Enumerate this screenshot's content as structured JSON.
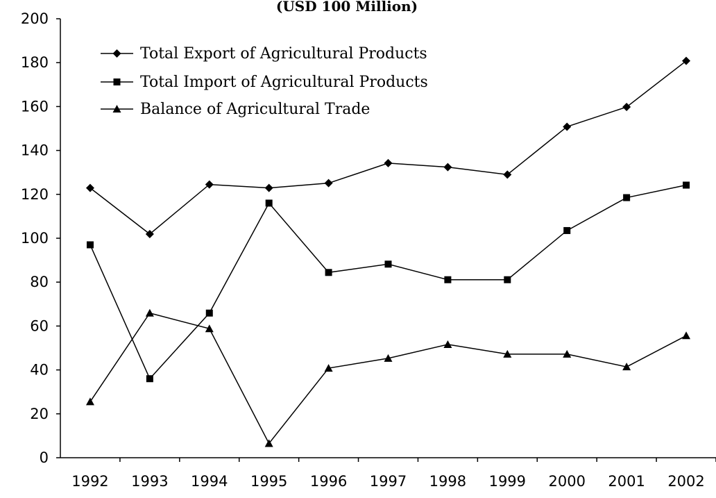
{
  "chart_data": {
    "type": "line",
    "title": "(USD 100 Million)",
    "categories": [
      "1992",
      "1993",
      "1994",
      "1995",
      "1996",
      "1997",
      "1998",
      "1999",
      "2000",
      "2001",
      "2002"
    ],
    "ylim": [
      0,
      200
    ],
    "yticks": [
      0,
      20,
      40,
      60,
      80,
      100,
      120,
      140,
      160,
      180,
      200
    ],
    "xlabel": "",
    "ylabel": "",
    "grid": false,
    "legend_position": "top-left",
    "series": [
      {
        "name": "Total Export of Agricultural Products",
        "marker": "diamond",
        "values": [
          122.9,
          101.9,
          124.5,
          122.9,
          125.1,
          134.2,
          132.4,
          129.0,
          150.8,
          159.8,
          180.8
        ]
      },
      {
        "name": "Total Import of Agricultural Products",
        "marker": "square",
        "values": [
          97.0,
          36.0,
          65.9,
          116.0,
          84.4,
          88.2,
          81.1,
          81.1,
          103.5,
          118.5,
          124.2
        ]
      },
      {
        "name": "Balance of Agricultural Trade",
        "marker": "triangle",
        "values": [
          25.5,
          65.9,
          58.8,
          6.5,
          40.8,
          45.3,
          51.6,
          47.2,
          47.2,
          41.4,
          55.6
        ]
      }
    ]
  }
}
